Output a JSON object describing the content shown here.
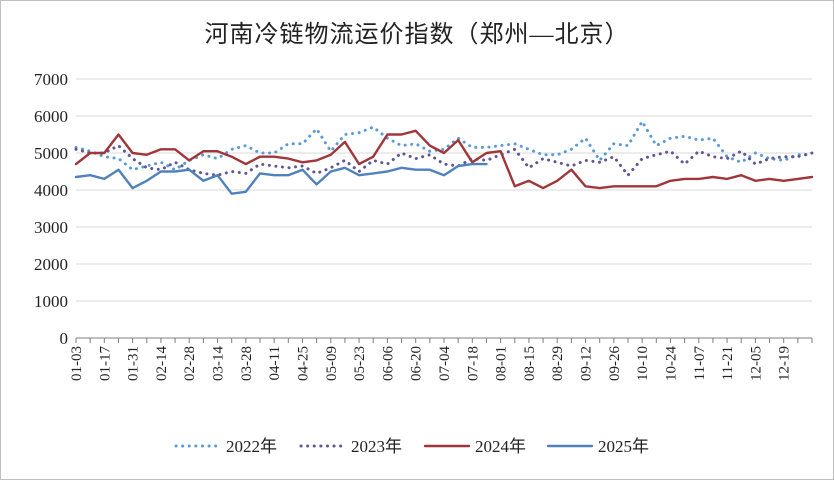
{
  "chart_data": {
    "type": "line",
    "title": "河南冷链物流运价指数（郑州—北京）",
    "xlabel": "",
    "ylabel": "",
    "ylim": [
      0,
      7000
    ],
    "yticks": [
      0,
      1000,
      2000,
      3000,
      4000,
      5000,
      6000,
      7000
    ],
    "x_count": 53,
    "x_tick_labels": [
      "01-03",
      "01-17",
      "01-31",
      "02-14",
      "02-28",
      "03-14",
      "03-28",
      "04-11",
      "04-25",
      "05-09",
      "05-23",
      "06-06",
      "06-20",
      "07-04",
      "07-18",
      "08-01",
      "08-15",
      "08-29",
      "09-12",
      "09-26",
      "10-10",
      "10-24",
      "11-07",
      "11-21",
      "12-05",
      "12-19"
    ],
    "legend_position": "bottom",
    "series": [
      {
        "name": "2022年",
        "color": "#5b9bd5",
        "style": "dotted",
        "values": [
          5150,
          5050,
          4900,
          4850,
          4550,
          4650,
          4750,
          4550,
          4800,
          4950,
          4850,
          5100,
          5200,
          5000,
          5000,
          5250,
          5250,
          5650,
          5050,
          5500,
          5550,
          5700,
          5400,
          5200,
          5250,
          5050,
          5100,
          5400,
          5150,
          5150,
          5200,
          5250,
          5100,
          4950,
          4950,
          5100,
          5400,
          4800,
          5250,
          5200,
          5850,
          5200,
          5400,
          5450,
          5350,
          5400,
          4900,
          4750,
          5000,
          4850,
          4800,
          4950,
          4950
        ]
      },
      {
        "name": "2023年",
        "color": "#5f5597",
        "style": "dotted",
        "values": [
          5100,
          5000,
          5000,
          5200,
          4850,
          4600,
          4550,
          4750,
          4550,
          4450,
          4400,
          4500,
          4450,
          4700,
          4650,
          4600,
          4650,
          4450,
          4600,
          4800,
          4500,
          4800,
          4700,
          5000,
          4850,
          4950,
          4700,
          4650,
          4850,
          4800,
          4950,
          5100,
          4600,
          4850,
          4750,
          4650,
          4800,
          4750,
          4900,
          4400,
          4850,
          4950,
          5050,
          4700,
          5050,
          4900,
          4850,
          5050,
          4700,
          4850,
          4900,
          4900,
          5000
        ]
      },
      {
        "name": "2024年",
        "color": "#a0363a",
        "style": "solid",
        "values": [
          4700,
          5000,
          5000,
          5500,
          5000,
          4950,
          5100,
          5100,
          4800,
          5050,
          5050,
          4900,
          4700,
          4900,
          4900,
          4850,
          4750,
          4800,
          4950,
          5300,
          4700,
          4900,
          5500,
          5500,
          5600,
          5200,
          5000,
          5350,
          4750,
          5000,
          5050,
          4100,
          4250,
          4050,
          4250,
          4550,
          4100,
          4050,
          4100,
          4100,
          4100,
          4100,
          4250,
          4300,
          4300,
          4350,
          4300,
          4400,
          4250,
          4300,
          4250,
          4300,
          4350
        ]
      },
      {
        "name": "2025年",
        "color": "#4f81bd",
        "style": "solid",
        "values": [
          4350,
          4400,
          4300,
          4550,
          4050,
          4250,
          4500,
          4500,
          4550,
          4250,
          4400,
          3900,
          3950,
          4450,
          4400,
          4400,
          4550,
          4150,
          4500,
          4600,
          4400,
          4450,
          4500,
          4600,
          4550,
          4550,
          4400,
          4650,
          4700,
          4700
        ]
      }
    ]
  }
}
